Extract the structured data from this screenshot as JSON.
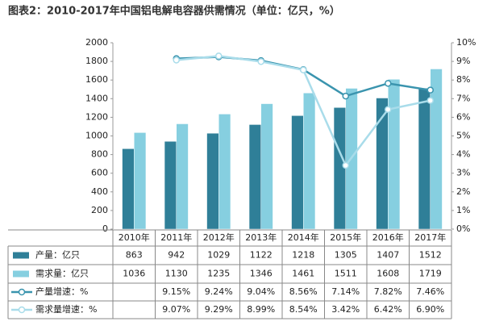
{
  "chart_data": {
    "type": "bar",
    "title": "图表2：2010-2017年中国铝电解电容器供需情况（单位：亿只，%）",
    "categories": [
      "2010年",
      "2011年",
      "2012年",
      "2013年",
      "2014年",
      "2015年",
      "2016年",
      "2017年"
    ],
    "series": [
      {
        "name": "产量：亿只",
        "type": "bar",
        "color": "#2f7f98",
        "values": [
          863,
          942,
          1029,
          1122,
          1218,
          1305,
          1407,
          1512
        ]
      },
      {
        "name": "需求量：亿只",
        "type": "bar",
        "color": "#86cfe0",
        "values": [
          1036,
          1130,
          1235,
          1346,
          1461,
          1511,
          1608,
          1719
        ]
      },
      {
        "name": "产量增速：%",
        "type": "line",
        "axis": "y2",
        "color": "#3a94ae",
        "values": [
          null,
          9.15,
          9.24,
          9.04,
          8.56,
          7.14,
          7.82,
          7.46
        ],
        "value_labels": [
          null,
          "9.15%",
          "9.24%",
          "9.04%",
          "8.56%",
          "7.14%",
          "7.82%",
          "7.46%"
        ]
      },
      {
        "name": "需求量增速：%",
        "type": "line",
        "axis": "y2",
        "color": "#a9dcea",
        "values": [
          null,
          9.07,
          9.29,
          8.99,
          8.54,
          3.42,
          6.42,
          6.9
        ],
        "value_labels": [
          null,
          "9.07%",
          "9.29%",
          "8.99%",
          "8.54%",
          "3.42%",
          "6.42%",
          "6.90%"
        ]
      }
    ],
    "ylim": [
      0,
      2000
    ],
    "yticks": [
      0,
      200,
      400,
      600,
      800,
      1000,
      1200,
      1400,
      1600,
      1800,
      2000
    ],
    "y2lim": [
      0,
      10
    ],
    "y2ticks": [
      {
        "value": 0,
        "label": "0%"
      },
      {
        "value": 1,
        "label": "1%"
      },
      {
        "value": 2,
        "label": "2%"
      },
      {
        "value": 3,
        "label": "3%"
      },
      {
        "value": 4,
        "label": "4%"
      },
      {
        "value": 5,
        "label": "5%"
      },
      {
        "value": 6,
        "label": "6%"
      },
      {
        "value": 7,
        "label": "7%"
      },
      {
        "value": 8,
        "label": "8%"
      },
      {
        "value": 9,
        "label": "9%"
      },
      {
        "value": 10,
        "label": "10%"
      }
    ],
    "grid": false
  }
}
